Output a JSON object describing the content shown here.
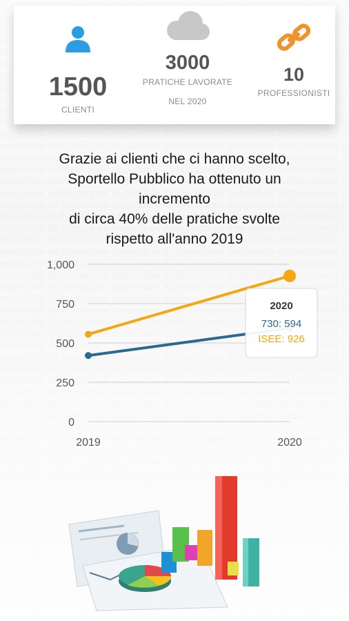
{
  "stats": {
    "clienti": {
      "value": "1500",
      "label": "CLIENTI",
      "icon": "user-icon",
      "color": "#2a9ee0"
    },
    "pratiche": {
      "value": "3000",
      "label_line1": "PRATICHE LAVORATE",
      "label_line2": "NEL 2020",
      "icon": "cloud-icon",
      "color": "#c8c8c8"
    },
    "professionisti": {
      "value": "10",
      "label": "PROFESSIONISTI",
      "icon": "link-icon",
      "color": "#f0932b"
    }
  },
  "headline": {
    "lines": [
      "Grazie ai clienti che ci hanno scelto,",
      "Sportello Pubblico ha ottenuto un",
      "incremento",
      "di circa 40% delle pratiche svolte",
      "rispetto all'anno 2019"
    ]
  },
  "chart_data": {
    "type": "line",
    "x": [
      "2019",
      "2020"
    ],
    "series": [
      {
        "name": "730",
        "values": [
          420,
          594
        ],
        "color": "#2a6990"
      },
      {
        "name": "ISEE",
        "values": [
          555,
          926
        ],
        "color": "#f3a712"
      }
    ],
    "ylim": [
      0,
      1000
    ],
    "yticks": [
      "0",
      "250",
      "500",
      "750",
      "1,000"
    ],
    "ytick_values": [
      0,
      250,
      500,
      750,
      1000
    ],
    "grid": true,
    "tooltip": {
      "title": "2020",
      "lines": [
        "730: 594",
        "ISEE: 926"
      ]
    }
  }
}
